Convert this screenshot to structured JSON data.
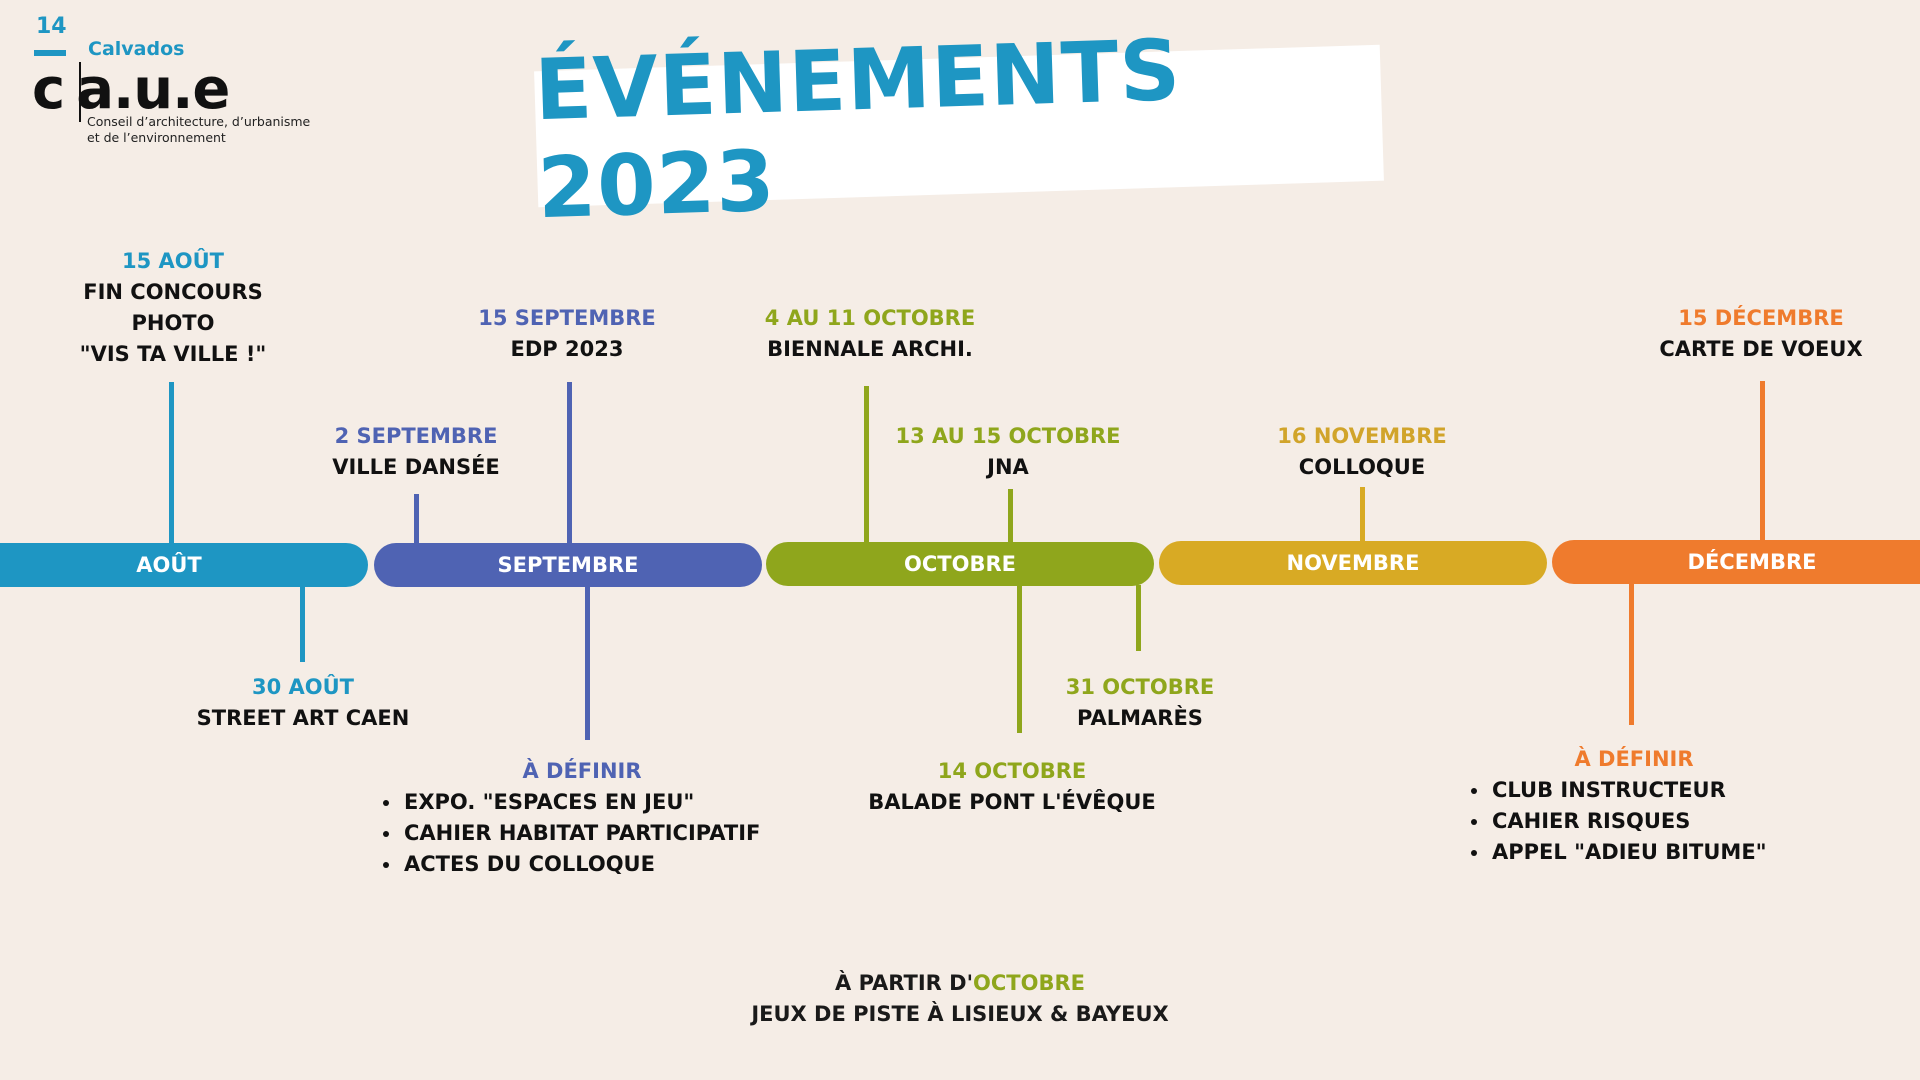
{
  "logo": {
    "number": "14",
    "name": "Calvados",
    "main": "c|a.u.e",
    "subtitle_line1": "Conseil d’architecture, d’urbanisme",
    "subtitle_line2": "et de l’environnement"
  },
  "title": "ÉVÉNEMENTS 2023",
  "months": [
    {
      "label": "AOÛT",
      "color": "#1e96c3"
    },
    {
      "label": "SEPTEMBRE",
      "color": "#4f63b3"
    },
    {
      "label": "OCTOBRE",
      "color": "#8fa61c"
    },
    {
      "label": "NOVEMBRE",
      "color": "#d8aa24"
    },
    {
      "label": "DÉCEMBRE",
      "color": "#ef7b2d"
    }
  ],
  "events": {
    "aug15": {
      "date": "15 AOÛT",
      "line1": "FIN CONCOURS",
      "line2": "PHOTO",
      "line3": "\"VIS TA VILLE !\""
    },
    "aug30": {
      "date": "30 AOÛT",
      "text": "STREET ART CAEN"
    },
    "sep2": {
      "date": "2 SEPTEMBRE",
      "text": "VILLE DANSÉE"
    },
    "sep15": {
      "date": "15 SEPTEMBRE",
      "text": "EDP 2023"
    },
    "sep_tbd": {
      "date": "À DÉFINIR",
      "items": [
        "EXPO. \"ESPACES EN JEU\"",
        "CAHIER HABITAT PARTICIPATIF",
        "ACTES DU COLLOQUE"
      ]
    },
    "oct4": {
      "date": "4 AU 11 OCTOBRE",
      "text": "BIENNALE ARCHI."
    },
    "oct13": {
      "date": "13 AU 15 OCTOBRE",
      "text": "JNA"
    },
    "oct14": {
      "date": "14 OCTOBRE",
      "text": "BALADE PONT L'ÉVÊQUE"
    },
    "oct31": {
      "date": "31 OCTOBRE",
      "text": "PALMARÈS"
    },
    "nov16": {
      "date": "16 NOVEMBRE",
      "text": "COLLOQUE"
    },
    "dec15": {
      "date": "15 DÉCEMBRE",
      "text": "CARTE DE VOEUX"
    },
    "dec_tbd": {
      "date": "À DÉFINIR",
      "items": [
        "CLUB INSTRUCTEUR",
        "CAHIER RISQUES",
        "APPEL \"ADIEU BITUME\""
      ]
    }
  },
  "footer": {
    "prefix": "À PARTIR D'",
    "month": "OCTOBRE",
    "text": "JEUX DE PISTE À LISIEUX & BAYEUX"
  }
}
